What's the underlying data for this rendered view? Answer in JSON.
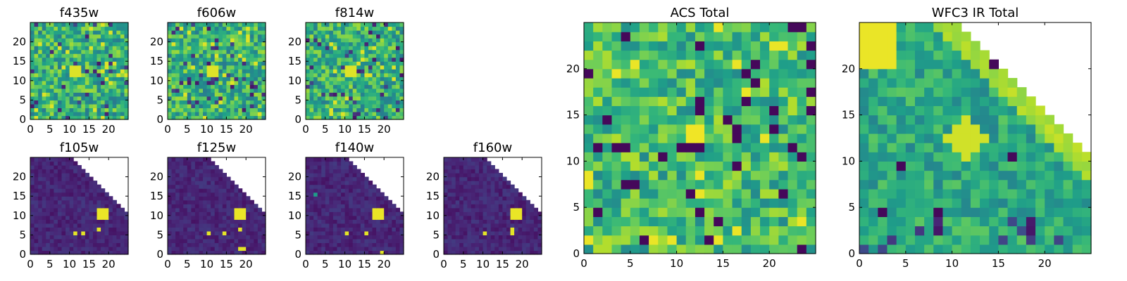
{
  "chart_data": [
    {
      "type": "heatmap",
      "title": "f435w",
      "field": "acs",
      "xlim": [
        0,
        25
      ],
      "ylim": [
        0,
        25
      ],
      "xticks": [
        0,
        5,
        10,
        15,
        20
      ],
      "yticks": [
        0,
        5,
        10,
        15,
        20
      ],
      "colormap": "viridis",
      "grid": false
    },
    {
      "type": "heatmap",
      "title": "f606w",
      "field": "acs",
      "xlim": [
        0,
        25
      ],
      "ylim": [
        0,
        25
      ],
      "xticks": [
        0,
        5,
        10,
        15,
        20
      ],
      "yticks": [
        0,
        5,
        10,
        15,
        20
      ],
      "colormap": "viridis",
      "grid": false
    },
    {
      "type": "heatmap",
      "title": "f814w",
      "field": "acs",
      "xlim": [
        0,
        25
      ],
      "ylim": [
        0,
        25
      ],
      "xticks": [
        0,
        5,
        10,
        15,
        20
      ],
      "yticks": [
        0,
        5,
        10,
        15,
        20
      ],
      "colormap": "viridis",
      "grid": false
    },
    {
      "type": "heatmap",
      "title": "f105w",
      "field": "ir",
      "xlim": [
        0,
        25
      ],
      "ylim": [
        0,
        25
      ],
      "xticks": [
        0,
        5,
        10,
        15,
        20
      ],
      "yticks": [
        0,
        5,
        10,
        15,
        20
      ],
      "colormap": "viridis",
      "grid": false,
      "hot_pixels": [
        [
          11,
          5
        ],
        [
          13,
          5
        ],
        [
          17,
          6
        ]
      ]
    },
    {
      "type": "heatmap",
      "title": "f125w",
      "field": "ir",
      "xlim": [
        0,
        25
      ],
      "ylim": [
        0,
        25
      ],
      "xticks": [
        0,
        5,
        10,
        15,
        20
      ],
      "yticks": [
        0,
        5,
        10,
        15,
        20
      ],
      "colormap": "viridis",
      "grid": false,
      "hot_pixels": [
        [
          10,
          5
        ],
        [
          14,
          5
        ],
        [
          18,
          6
        ],
        [
          18,
          1
        ],
        [
          19,
          1
        ]
      ]
    },
    {
      "type": "heatmap",
      "title": "f140w",
      "field": "ir",
      "xlim": [
        0,
        25
      ],
      "ylim": [
        0,
        25
      ],
      "xticks": [
        0,
        5,
        10,
        15,
        20
      ],
      "yticks": [
        0,
        5,
        10,
        15,
        20
      ],
      "colormap": "viridis",
      "grid": false,
      "hot_pixels": [
        [
          2,
          15
        ],
        [
          10,
          5
        ],
        [
          15,
          5
        ],
        [
          19,
          0
        ]
      ]
    },
    {
      "type": "heatmap",
      "title": "f160w",
      "field": "ir",
      "xlim": [
        0,
        25
      ],
      "ylim": [
        0,
        25
      ],
      "xticks": [
        0,
        5,
        10,
        15,
        20
      ],
      "yticks": [
        0,
        5,
        10,
        15,
        20
      ],
      "colormap": "viridis",
      "grid": false,
      "hot_pixels": [
        [
          10,
          5
        ],
        [
          17,
          5
        ],
        [
          17,
          6
        ]
      ]
    },
    {
      "type": "heatmap",
      "title": "ACS Total",
      "field": "acs_total",
      "xlim": [
        0,
        25
      ],
      "ylim": [
        0,
        25
      ],
      "xticks": [
        0,
        5,
        10,
        15,
        20
      ],
      "yticks": [
        0,
        5,
        10,
        15,
        20
      ],
      "colormap": "viridis",
      "grid": false
    },
    {
      "type": "heatmap",
      "title": "WFC3 IR Total",
      "field": "ir_total",
      "xlim": [
        0,
        25
      ],
      "ylim": [
        0,
        25
      ],
      "xticks": [
        0,
        5,
        10,
        15,
        20
      ],
      "yticks": [
        0,
        5,
        10,
        15,
        20
      ],
      "colormap": "viridis",
      "grid": false
    }
  ]
}
